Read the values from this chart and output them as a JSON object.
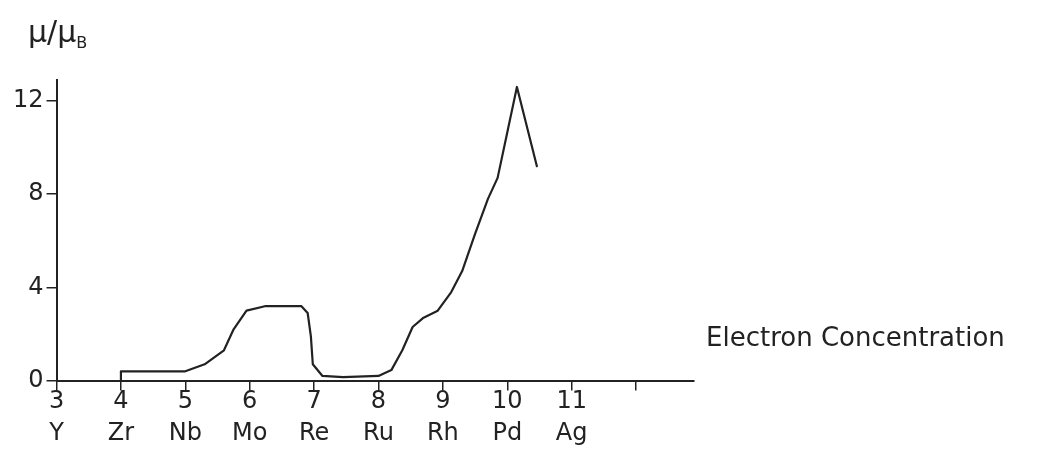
{
  "chart_data": {
    "type": "line",
    "xlabel": "Electron Concentration",
    "ylabel": "μ/μ$_{B}$",
    "series": [
      {
        "color": "#222222",
        "x": [
          4,
          4,
          5,
          5.3,
          5.6,
          5.75,
          5.95,
          6.25,
          6.8,
          6.9,
          6.95,
          6.98,
          7.13,
          7.45,
          8,
          8.2,
          8.37,
          8.53,
          8.7,
          8.92,
          9.13,
          9.3,
          9.5,
          9.7,
          9.85,
          10.15,
          10.46
        ],
        "values": [
          0,
          0.4,
          0.4,
          0.7,
          1.3,
          2.2,
          3,
          3.2,
          3.2,
          2.9,
          1.9,
          0.7,
          0.2,
          0.15,
          0.2,
          0.45,
          1.3,
          2.3,
          2.7,
          3,
          3.8,
          4.7,
          6.3,
          7.8,
          8.7,
          12.6,
          9.2
        ]
      }
    ],
    "xlim": [
      3,
      12.9
    ],
    "ylim": [
      0,
      12.9
    ],
    "xticks": [
      {
        "value": 3,
        "label": "3\nY"
      },
      {
        "value": 4,
        "label": "4\nZr"
      },
      {
        "value": 5,
        "label": "5\nNb"
      },
      {
        "value": 6,
        "label": "6\nMo"
      },
      {
        "value": 7,
        "label": "7\nRe"
      },
      {
        "value": 8,
        "label": "8\nRu"
      },
      {
        "value": 9,
        "label": "9\nRh"
      },
      {
        "value": 10,
        "label": "10\nPd"
      },
      {
        "value": 11,
        "label": "11\nAg"
      },
      {
        "value": 12,
        "label": null
      }
    ],
    "yticks": [
      0,
      4,
      8,
      12
    ],
    "marker": "none",
    "line_style": "solid",
    "legend": false,
    "grid": false
  }
}
